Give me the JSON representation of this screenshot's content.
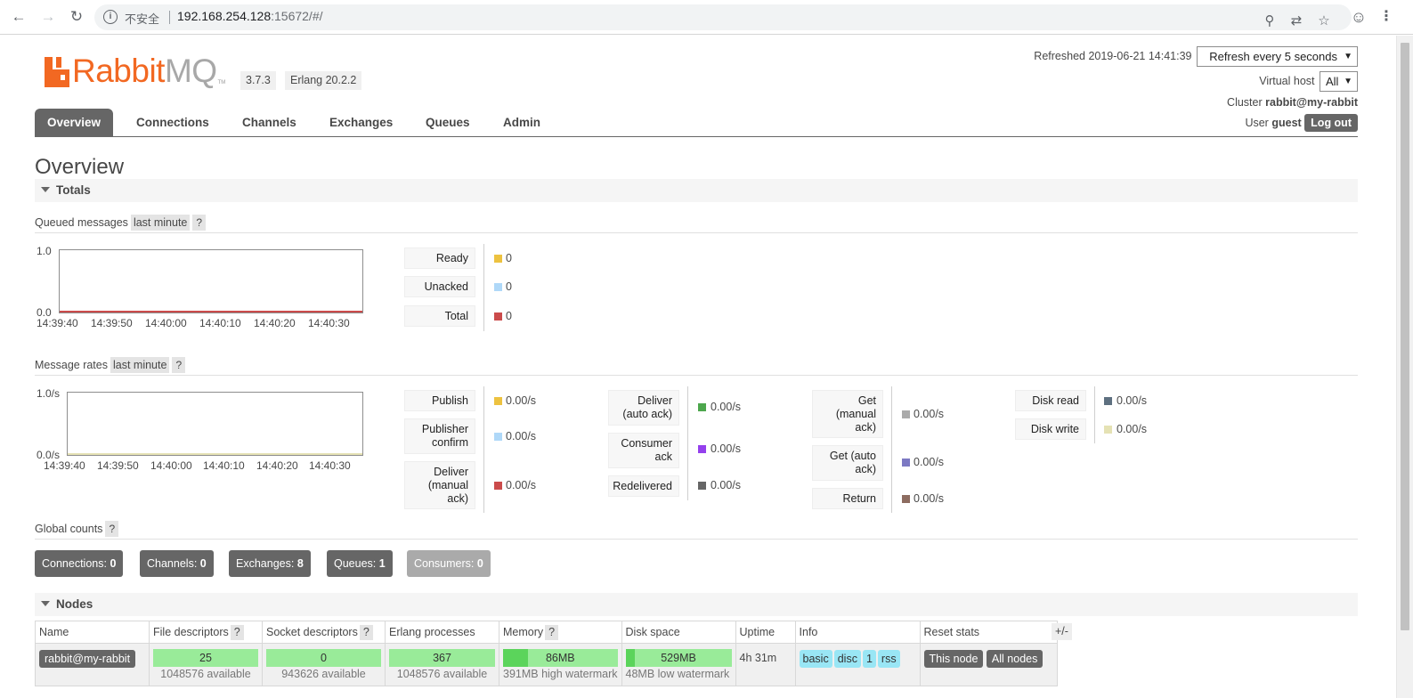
{
  "browser": {
    "insecure_label": "不安全",
    "url_host": "192.168.254.128",
    "url_path": ":15672/#/"
  },
  "header": {
    "logo_text_1": "Rabbit",
    "logo_text_2": "MQ",
    "logo_tm": "TM",
    "version": "3.7.3",
    "erlang": "Erlang 20.2.2",
    "refreshed": "Refreshed 2019-06-21 14:41:39",
    "refresh_select": "Refresh every 5 seconds",
    "vhost_label": "Virtual host",
    "vhost_select": "All",
    "cluster_label": "Cluster",
    "cluster_name": "rabbit@my-rabbit",
    "user_label": "User",
    "user_name": "guest",
    "logout": "Log out"
  },
  "tabs": [
    "Overview",
    "Connections",
    "Channels",
    "Exchanges",
    "Queues",
    "Admin"
  ],
  "page_title": "Overview",
  "totals": {
    "section": "Totals",
    "queued": {
      "title": "Queued messages",
      "range": "last minute",
      "help": "?",
      "y_top": "1.0",
      "y_bottom": "0.0",
      "x_ticks": [
        "14:39:40",
        "14:39:50",
        "14:40:00",
        "14:40:10",
        "14:40:20",
        "14:40:30"
      ],
      "legend": [
        {
          "label": "Ready",
          "value": "0",
          "color": "#edc240"
        },
        {
          "label": "Unacked",
          "value": "0",
          "color": "#afd8f8"
        },
        {
          "label": "Total",
          "value": "0",
          "color": "#cb4b4b"
        }
      ]
    },
    "rates": {
      "title": "Message rates",
      "range": "last minute",
      "help": "?",
      "y_top": "1.0/s",
      "y_bottom": "0.0/s",
      "x_ticks": [
        "14:39:40",
        "14:39:50",
        "14:40:00",
        "14:40:10",
        "14:40:20",
        "14:40:30"
      ],
      "col1": [
        {
          "label": "Publish",
          "value": "0.00/s",
          "color": "#edc240"
        },
        {
          "label": "Publisher confirm",
          "value": "0.00/s",
          "color": "#afd8f8"
        },
        {
          "label": "Deliver (manual ack)",
          "value": "0.00/s",
          "color": "#cb4b4b"
        }
      ],
      "col2": [
        {
          "label": "Deliver (auto ack)",
          "value": "0.00/s",
          "color": "#4da74d"
        },
        {
          "label": "Consumer ack",
          "value": "0.00/s",
          "color": "#9440ed"
        },
        {
          "label": "Redelivered",
          "value": "0.00/s",
          "color": "#666666"
        }
      ],
      "col3": [
        {
          "label": "Get (manual ack)",
          "value": "0.00/s",
          "color": "#aaaaaa"
        },
        {
          "label": "Get (auto ack)",
          "value": "0.00/s",
          "color": "#7c79c3"
        },
        {
          "label": "Return",
          "value": "0.00/s",
          "color": "#8d6c60"
        }
      ],
      "col4": [
        {
          "label": "Disk read",
          "value": "0.00/s",
          "color": "#5e7080"
        },
        {
          "label": "Disk write",
          "value": "0.00/s",
          "color": "#e5e2b4"
        }
      ]
    },
    "global": {
      "title": "Global counts",
      "help": "?",
      "counts": [
        {
          "label": "Connections:",
          "value": "0"
        },
        {
          "label": "Channels:",
          "value": "0"
        },
        {
          "label": "Exchanges:",
          "value": "8"
        },
        {
          "label": "Queues:",
          "value": "1"
        },
        {
          "label": "Consumers:",
          "value": "0"
        }
      ]
    }
  },
  "nodes": {
    "section": "Nodes",
    "plus_minus": "+/-",
    "headers": {
      "name": "Name",
      "file_desc": "File descriptors",
      "socket_desc": "Socket descriptors",
      "erlang_proc": "Erlang processes",
      "memory": "Memory",
      "disk": "Disk space",
      "uptime": "Uptime",
      "info": "Info",
      "reset": "Reset stats",
      "help": "?"
    },
    "row": {
      "name": "rabbit@my-rabbit",
      "file_desc": "25",
      "file_desc_avail": "1048576 available",
      "socket_desc": "0",
      "socket_desc_avail": "943626 available",
      "erlang_proc": "367",
      "erlang_proc_avail": "1048576 available",
      "memory": "86MB",
      "memory_sub": "391MB high watermark",
      "memory_fill": 0.22,
      "disk": "529MB",
      "disk_sub": "48MB low watermark",
      "disk_fill": 0.09,
      "uptime": "4h 31m",
      "info_tags": [
        "basic",
        "disc",
        "1",
        "rss"
      ],
      "reset_this": "This node",
      "reset_all": "All nodes"
    }
  }
}
